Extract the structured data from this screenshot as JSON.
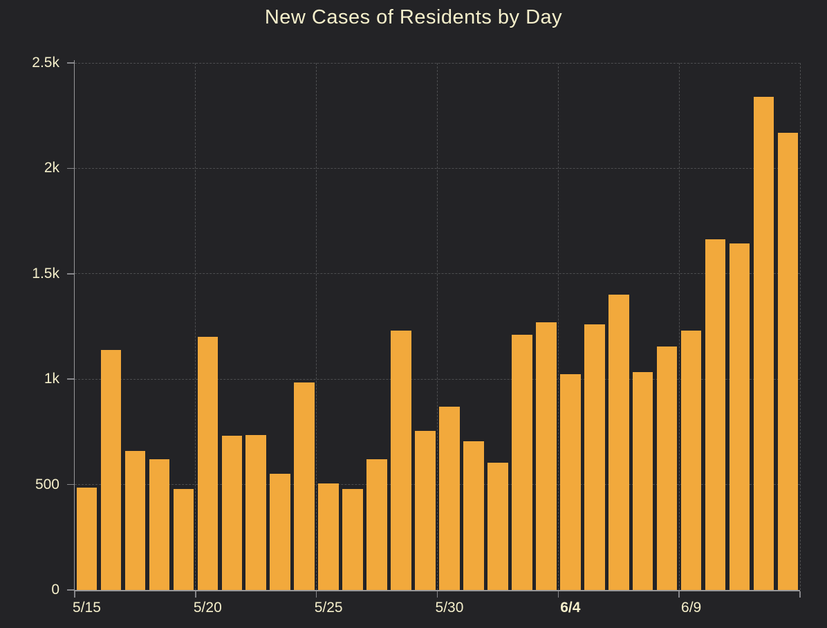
{
  "chart_data": {
    "type": "bar",
    "title": "New Cases of Residents by Day",
    "xlabel": "",
    "ylabel": "",
    "x": [
      "5/15",
      "5/16",
      "5/17",
      "5/18",
      "5/19",
      "5/20",
      "5/21",
      "5/22",
      "5/23",
      "5/24",
      "5/25",
      "5/26",
      "5/27",
      "5/28",
      "5/29",
      "5/30",
      "5/31",
      "6/1",
      "6/2",
      "6/3",
      "6/4",
      "6/5",
      "6/6",
      "6/7",
      "6/8",
      "6/9",
      "6/10",
      "6/11",
      "6/12",
      "6/13"
    ],
    "values": [
      485,
      1140,
      660,
      620,
      480,
      1200,
      730,
      735,
      550,
      985,
      505,
      480,
      620,
      1230,
      755,
      870,
      705,
      605,
      1210,
      1270,
      1025,
      1260,
      1400,
      1035,
      1155,
      1230,
      1665,
      1645,
      2340,
      2170
    ],
    "ylim": [
      0,
      2500
    ],
    "yticks": [
      {
        "value": 0,
        "label": "0"
      },
      {
        "value": 500,
        "label": "500"
      },
      {
        "value": 1000,
        "label": "1k"
      },
      {
        "value": 1500,
        "label": "1.5k"
      },
      {
        "value": 2000,
        "label": "2k"
      },
      {
        "value": 2500,
        "label": "2.5k"
      }
    ],
    "xticks": [
      {
        "index": 0,
        "label": "5/15",
        "bold": false
      },
      {
        "index": 5,
        "label": "5/20",
        "bold": false
      },
      {
        "index": 10,
        "label": "5/25",
        "bold": false
      },
      {
        "index": 15,
        "label": "5/30",
        "bold": false
      },
      {
        "index": 20,
        "label": "6/4",
        "bold": true
      },
      {
        "index": 25,
        "label": "6/9",
        "bold": false
      }
    ],
    "grid": "dashed",
    "legend": null
  },
  "colors": {
    "background": "#232326",
    "bar": "#F2A93C",
    "text": "#F5EFCB",
    "grid": "#4D4E50",
    "axis": "#98989A",
    "tick": "#86868A"
  }
}
